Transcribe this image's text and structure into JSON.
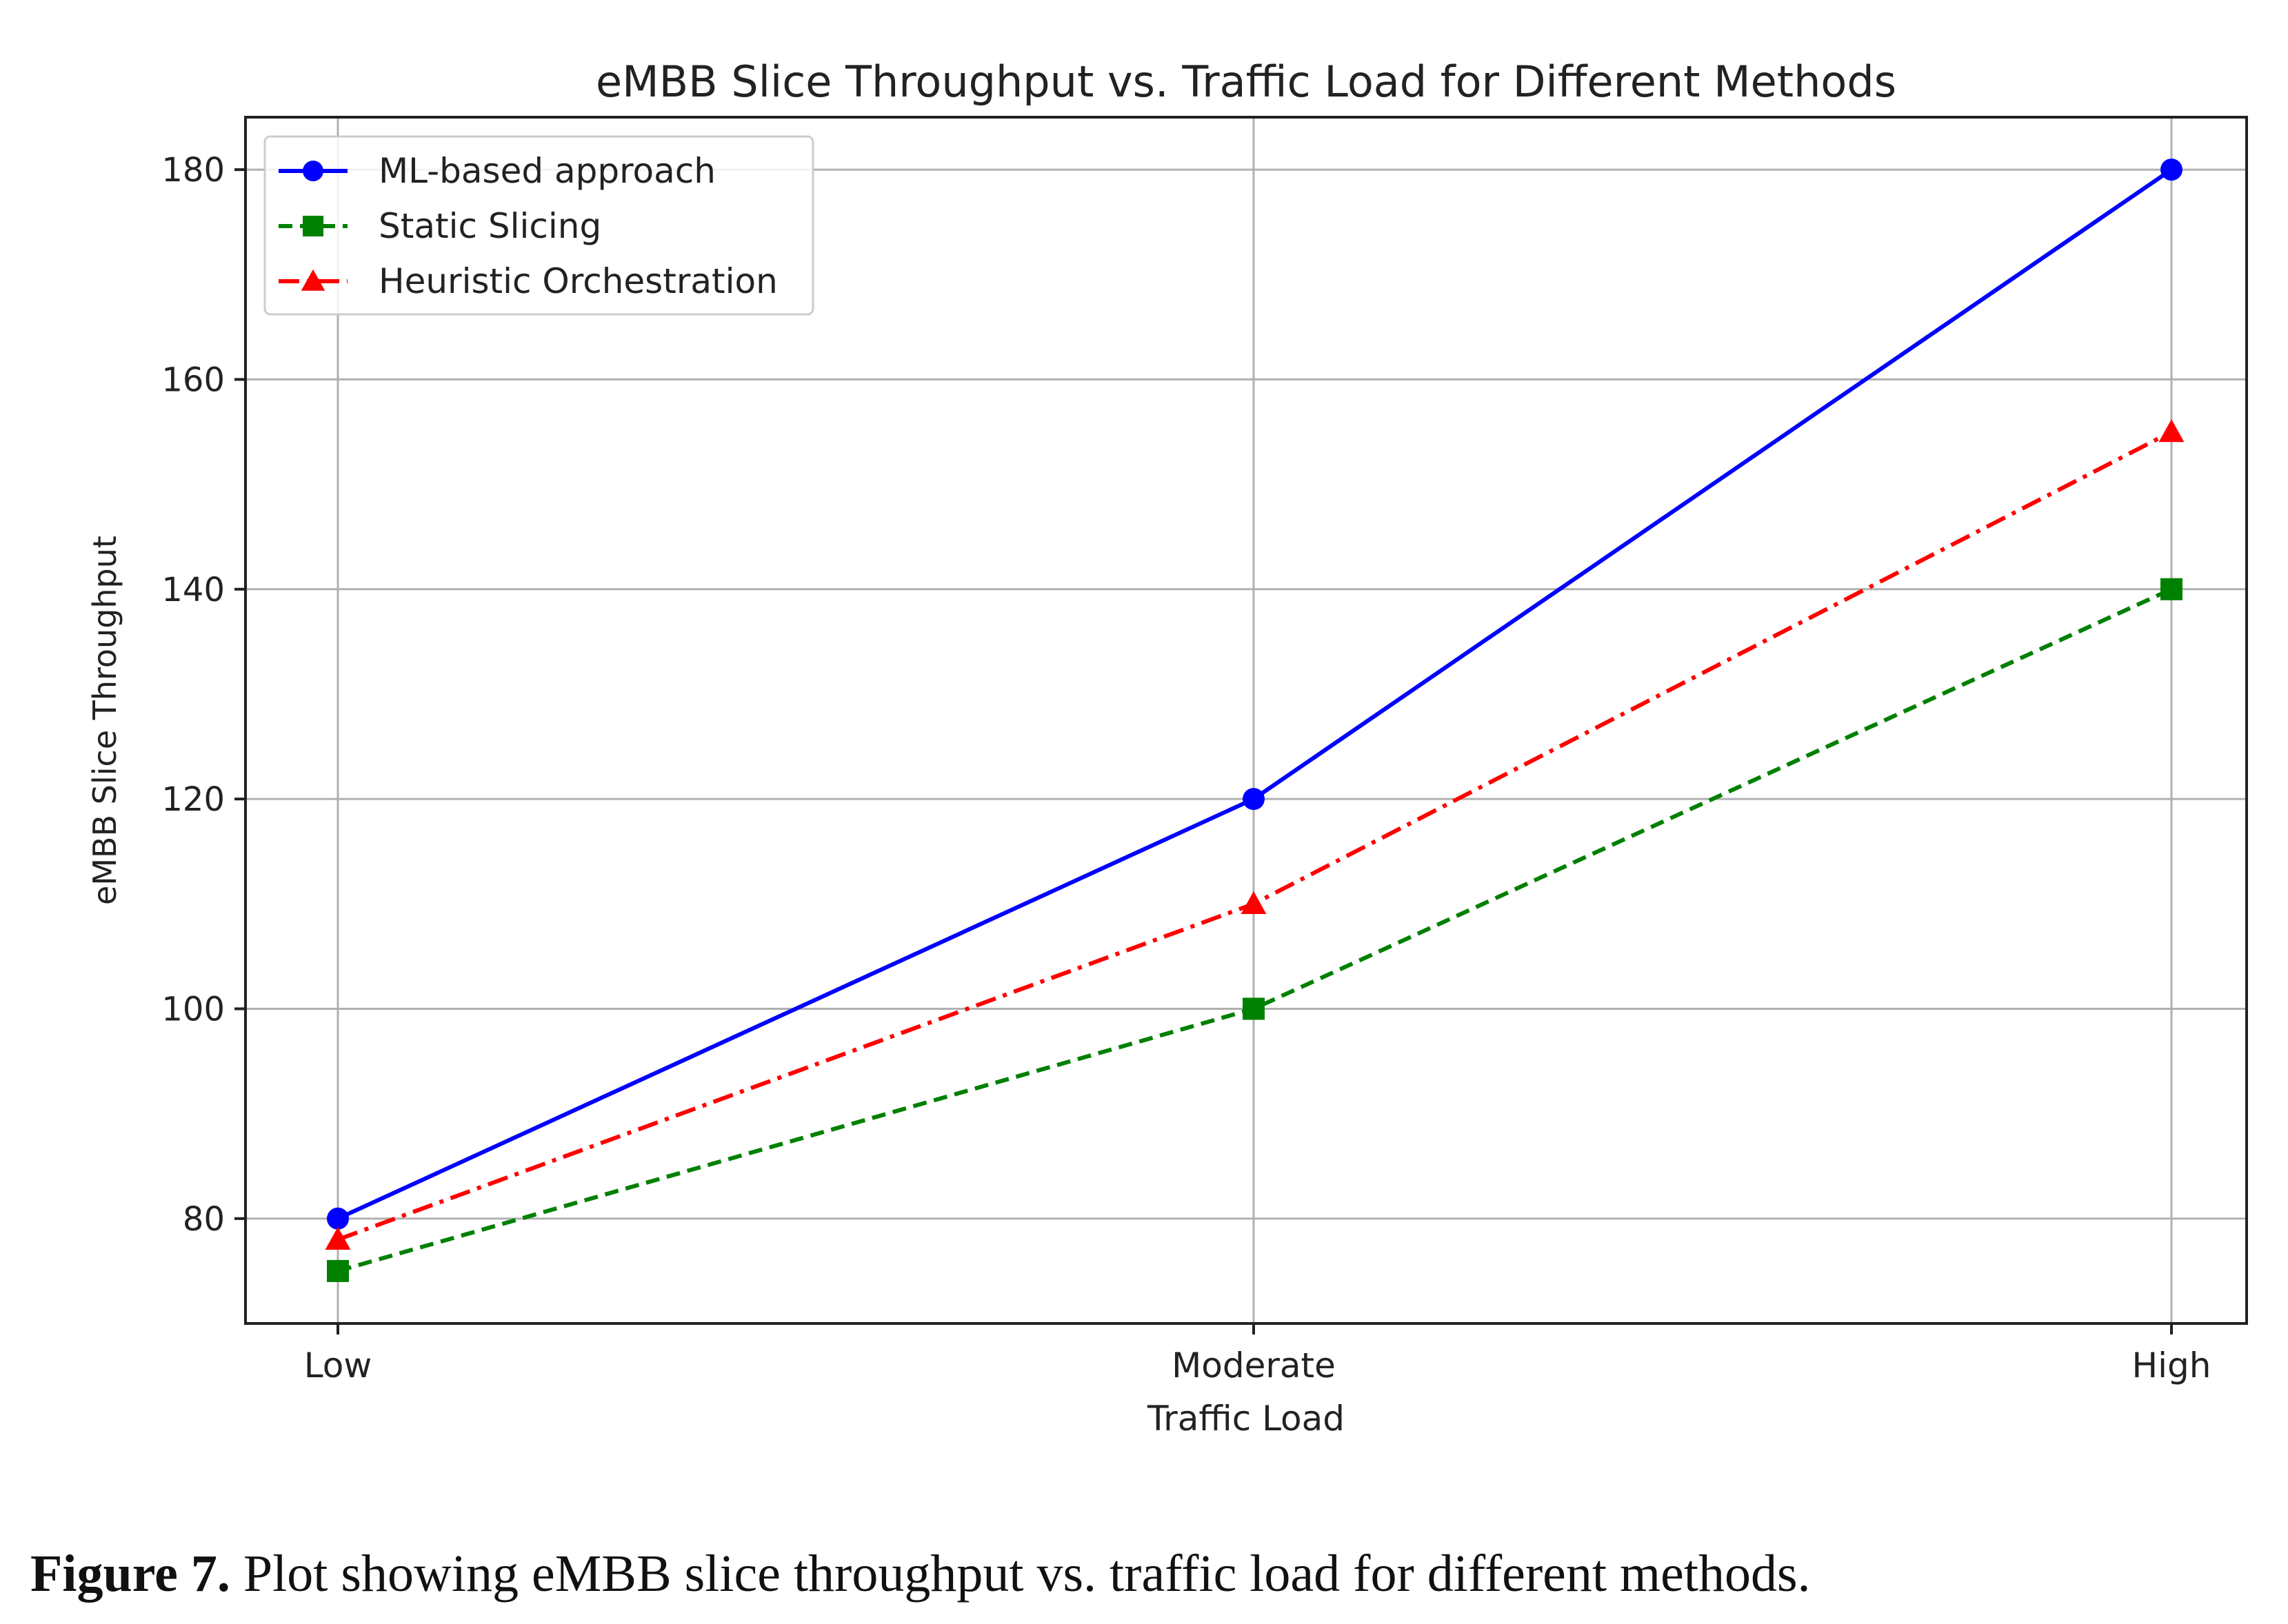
{
  "chart_data": {
    "type": "line",
    "title": "eMBB Slice Throughput vs. Traffic Load for Different Methods",
    "xlabel": "Traffic Load",
    "ylabel": "eMBB Slice Throughput",
    "categories": [
      "Low",
      "Moderate",
      "High"
    ],
    "ylim": [
      70,
      185
    ],
    "yticks": [
      80,
      100,
      120,
      140,
      160,
      180
    ],
    "grid": true,
    "legend_position": "top-left",
    "series": [
      {
        "name": "ML-based approach",
        "values": [
          80,
          120,
          180
        ],
        "color": "#0000ff",
        "marker": "circle",
        "linestyle": "solid"
      },
      {
        "name": "Static Slicing",
        "values": [
          75,
          100,
          140
        ],
        "color": "#008000",
        "marker": "square",
        "linestyle": "dashed"
      },
      {
        "name": "Heuristic Orchestration",
        "values": [
          78,
          110,
          155
        ],
        "color": "#ff0000",
        "marker": "triangle",
        "linestyle": "dashdot"
      }
    ]
  },
  "caption": {
    "label": "Figure 7.",
    "text": " Plot showing eMBB slice throughput vs. traffic load for different methods."
  }
}
